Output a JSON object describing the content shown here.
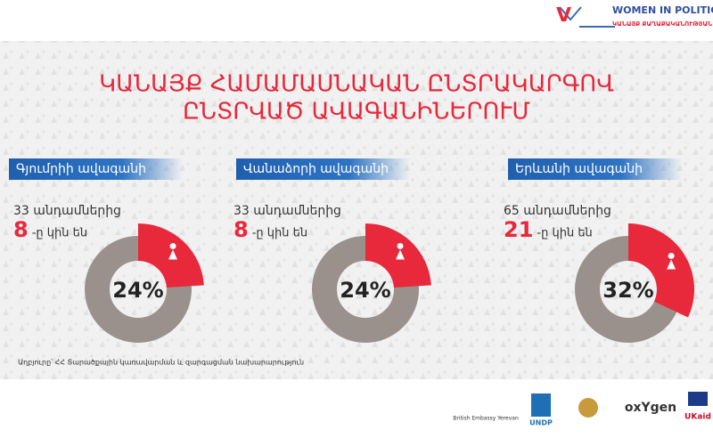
{
  "header": {
    "brand": "WOMEN IN POLITICS",
    "brand_sub": "ԿԱՆԱՅՔ ՔԱՂԱՔԱԿԱՆՈՒԹՅԱՆ ՄԵՋ"
  },
  "title": [
    "ԿԱՆԱՅՔ ՀԱՄԱՄԱՍՆԱԿԱՆ ԸՆՏՐԱԿԱՐԳՈՎ",
    "ԸՆՏՐՎԱԾ ԱՎԱԳԱՆԻՆԵՐՈՒՄ"
  ],
  "chart_data": [
    {
      "type": "pie",
      "title": "Գյումրիի ավագանի",
      "total_text": "33 անդամներից",
      "women": "8",
      "women_suffix": "-ը կին են",
      "values": [
        24
      ],
      "value_labels": [
        "24%"
      ],
      "color": "#e8283b",
      "rest_color": "#9a918d"
    },
    {
      "type": "pie",
      "title": "Վանաձորի ավագանի",
      "total_text": "33 անդամներից",
      "women": "8",
      "women_suffix": "-ը կին են",
      "values": [
        24
      ],
      "value_labels": [
        "24%"
      ],
      "color": "#e8283b",
      "rest_color": "#9a918d"
    },
    {
      "type": "pie",
      "title": "Երևանի ավագանի",
      "total_text": "65 անդամներից",
      "women": "21",
      "women_suffix": "-ը կին են",
      "values": [
        32
      ],
      "value_labels": [
        "32%"
      ],
      "color": "#e8283b",
      "rest_color": "#9a918d"
    }
  ],
  "source": "Աղբյուրը՝ ՀՀ Տարածքային կառավարման և զարգացման նախարարություն",
  "logos": [
    "British Embassy Yerevan",
    "UNDP",
    "oxYgen",
    "UKaid"
  ]
}
